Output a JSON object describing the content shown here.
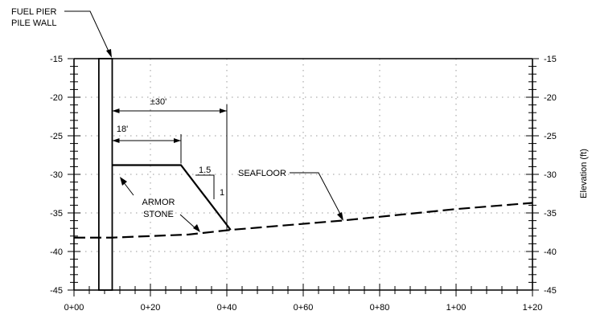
{
  "labels": {
    "pier_line1": "FUEL PIER",
    "pier_line2": "PILE WALL",
    "dim_total": "±30'",
    "dim_crest": "18'",
    "slope_run": "1.5",
    "slope_rise": "1",
    "armor_line1": "ARMOR",
    "armor_line2": "STONE",
    "seafloor": "SEAFLOOR",
    "y_axis_title": "Elevation (ft)"
  },
  "axes": {
    "x": {
      "min": 0,
      "max": 120,
      "ticks": [
        0,
        20,
        40,
        60,
        80,
        100,
        120
      ],
      "tick_labels": [
        "0+00",
        "0+20",
        "0+40",
        "0+60",
        "0+80",
        "1+00",
        "1+20"
      ]
    },
    "y": {
      "min": -45,
      "max": -15,
      "ticks": [
        -15,
        -20,
        -25,
        -30,
        -35,
        -40,
        -45
      ],
      "tick_labels": [
        "-15",
        "-20",
        "-25",
        "-30",
        "-35",
        "-40",
        "-45"
      ]
    },
    "grid": "dotted"
  },
  "pile_wall": {
    "x_start": 6.5,
    "x_end": 10,
    "top": -15,
    "bottom": -45
  },
  "armor_stone": [
    [
      10,
      -28.8
    ],
    [
      28,
      -28.8
    ],
    [
      41,
      -37.2
    ]
  ],
  "seafloor": [
    [
      0,
      -38.2
    ],
    [
      10,
      -38.2
    ],
    [
      30,
      -37.8
    ],
    [
      41,
      -37.2
    ],
    [
      70,
      -36
    ],
    [
      100,
      -34.5
    ],
    [
      120,
      -33.7
    ]
  ],
  "dimensions": {
    "total_length": 30,
    "crest_width": 18
  }
}
